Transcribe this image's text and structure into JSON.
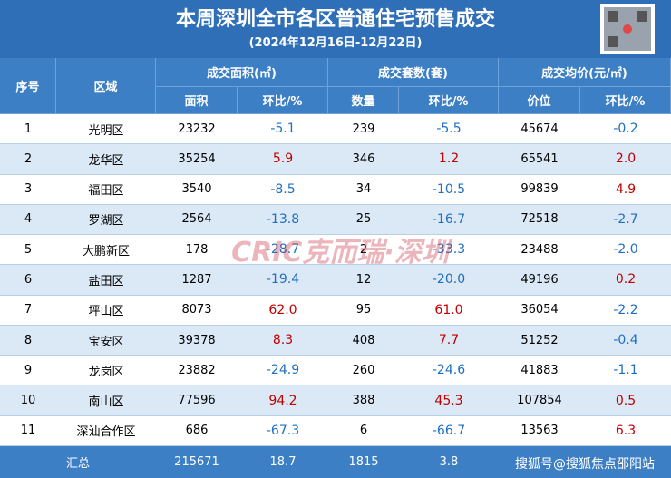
{
  "header": {
    "title": "本周深圳全市各区普通住宅预售成交",
    "subtitle": "(2024年12月16日-12月22日)"
  },
  "columns": {
    "seq": "序号",
    "region": "区域",
    "groups": [
      "成交面积(㎡)",
      "成交套数(套)",
      "成交均价(元/㎡)"
    ],
    "sub": [
      "面积",
      "环比/%",
      "数量",
      "环比/%",
      "价位",
      "环比/%"
    ]
  },
  "table": {
    "rows": [
      [
        "1",
        "光明区",
        "23232",
        "-5.1",
        "239",
        "-5.5",
        "45674",
        "-0.2"
      ],
      [
        "2",
        "龙华区",
        "35254",
        "5.9",
        "346",
        "1.2",
        "65541",
        "2.0"
      ],
      [
        "3",
        "福田区",
        "3540",
        "-8.5",
        "34",
        "-10.5",
        "99839",
        "4.9"
      ],
      [
        "4",
        "罗湖区",
        "2564",
        "-13.8",
        "25",
        "-16.7",
        "72518",
        "-2.7"
      ],
      [
        "5",
        "大鹏新区",
        "178",
        "-28.7",
        "2",
        "-33.3",
        "23488",
        "-2.0"
      ],
      [
        "6",
        "盐田区",
        "1287",
        "-19.4",
        "12",
        "-20.0",
        "49196",
        "0.2"
      ],
      [
        "7",
        "坪山区",
        "8073",
        "62.0",
        "95",
        "61.0",
        "36054",
        "-2.2"
      ],
      [
        "8",
        "宝安区",
        "39378",
        "8.3",
        "408",
        "7.7",
        "51252",
        "-0.4"
      ],
      [
        "9",
        "龙岗区",
        "23882",
        "-24.9",
        "260",
        "-24.6",
        "41883",
        "-1.1"
      ],
      [
        "10",
        "南山区",
        "77596",
        "94.2",
        "388",
        "45.3",
        "107854",
        "0.5"
      ],
      [
        "11",
        "深汕合作区",
        "686",
        "-67.3",
        "6",
        "-66.7",
        "13563",
        "6.3"
      ]
    ],
    "total": [
      "汇总",
      "215671",
      "18.7",
      "1815",
      "3.8"
    ]
  },
  "watermarks": [
    "CRIC克而瑞·深圳",
    "搜狐号@搜狐焦点邵阳站"
  ]
}
